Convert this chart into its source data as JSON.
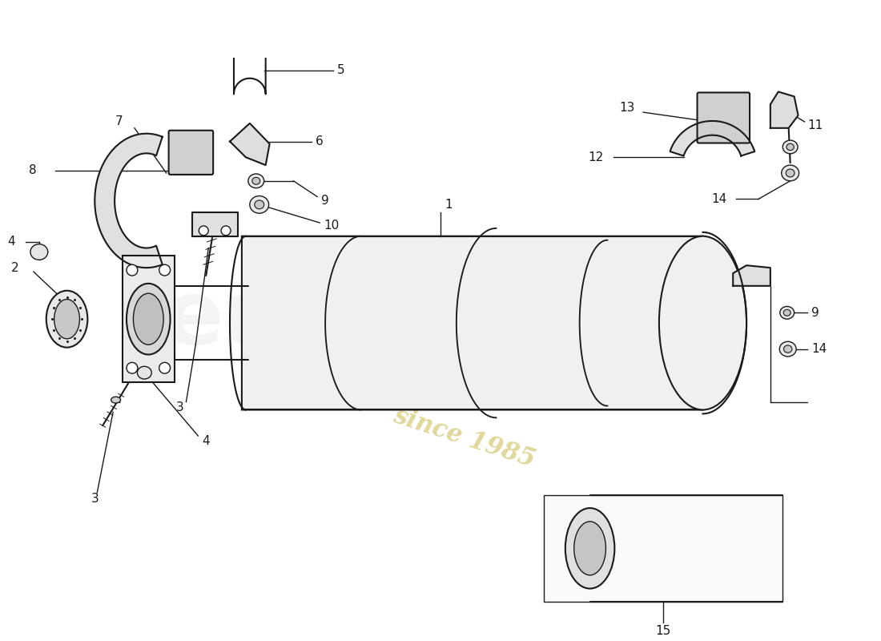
{
  "background_color": "#ffffff",
  "line_color": "#1a1a1a",
  "gray_fill": "#f0f0f0",
  "dark_gray": "#d0d0d0",
  "watermark_color": "#c8b84a",
  "watermark_alpha": 0.55,
  "fig_width": 11.0,
  "fig_height": 8.0,
  "dpi": 100,
  "label_fontsize": 11
}
